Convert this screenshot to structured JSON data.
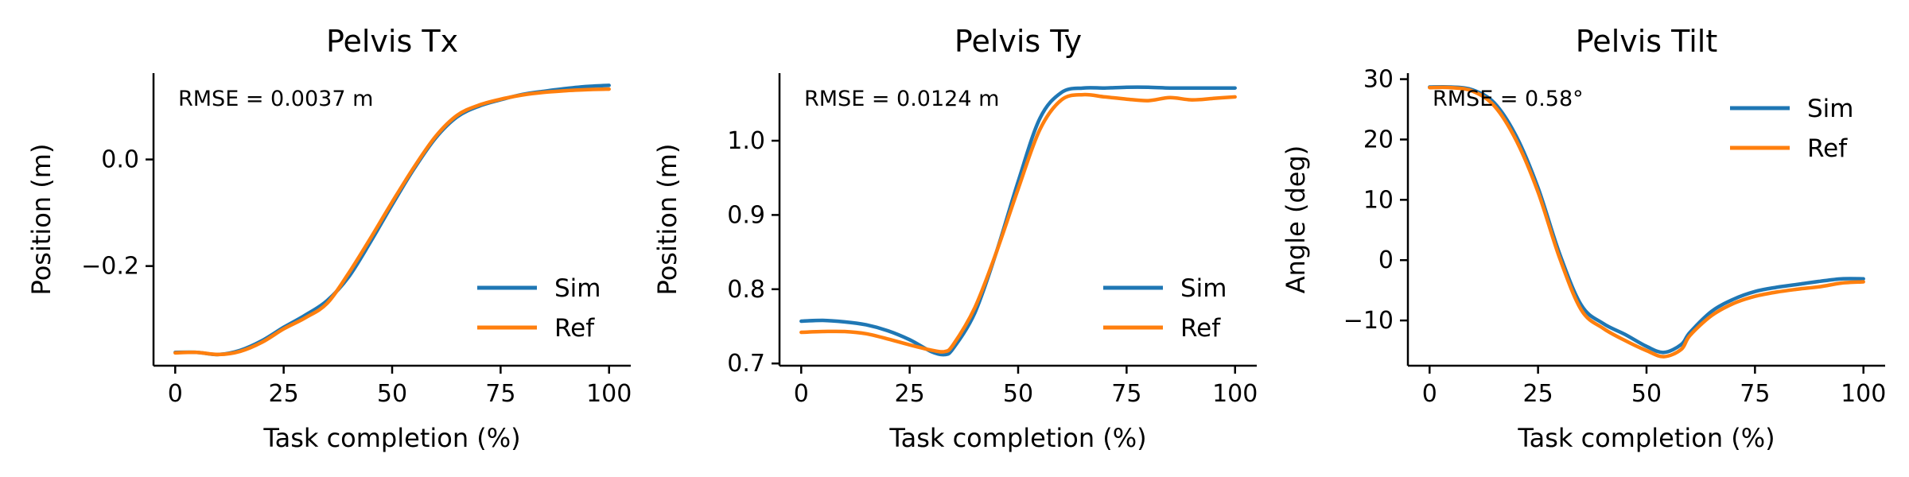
{
  "colors": {
    "sim": "#1f77b4",
    "ref": "#ff7f0e",
    "axis": "#000000"
  },
  "chart_data": [
    {
      "type": "line",
      "title": "Pelvis Tx",
      "xlabel": "Task completion (%)",
      "ylabel": "Position (m)",
      "annotation": "RMSE = 0.0037 m",
      "xlim": [
        -5,
        105
      ],
      "ylim": [
        -0.387,
        0.162
      ],
      "xticks": [
        0,
        25,
        50,
        75,
        100
      ],
      "xtick_labels": [
        "0",
        "25",
        "50",
        "75",
        "100"
      ],
      "yticks": [
        0.0,
        -0.2
      ],
      "ytick_labels": [
        "0.0",
        "−0.2"
      ],
      "legend_position": "lower right",
      "legend": [
        "Sim",
        "Ref"
      ],
      "x": [
        0,
        5,
        10,
        15,
        20,
        25,
        30,
        35,
        40,
        45,
        50,
        55,
        60,
        65,
        70,
        75,
        80,
        85,
        90,
        95,
        100
      ],
      "series": [
        {
          "name": "Sim",
          "color": "sim",
          "values": [
            -0.362,
            -0.362,
            -0.366,
            -0.358,
            -0.34,
            -0.315,
            -0.292,
            -0.265,
            -0.22,
            -0.155,
            -0.085,
            -0.018,
            0.04,
            0.08,
            0.1,
            0.112,
            0.122,
            0.128,
            0.133,
            0.137,
            0.139
          ]
        },
        {
          "name": "Ref",
          "color": "ref",
          "values": [
            -0.363,
            -0.362,
            -0.366,
            -0.36,
            -0.343,
            -0.318,
            -0.297,
            -0.27,
            -0.213,
            -0.148,
            -0.08,
            -0.015,
            0.043,
            0.083,
            0.102,
            0.113,
            0.121,
            0.126,
            0.129,
            0.131,
            0.132
          ]
        }
      ]
    },
    {
      "type": "line",
      "title": "Pelvis Ty",
      "xlabel": "Task completion (%)",
      "ylabel": "Position (m)",
      "annotation": "RMSE = 0.0124 m",
      "xlim": [
        -5,
        105
      ],
      "ylim": [
        0.697,
        1.091
      ],
      "xticks": [
        0,
        25,
        50,
        75,
        100
      ],
      "xtick_labels": [
        "0",
        "25",
        "50",
        "75",
        "100"
      ],
      "yticks": [
        0.7,
        0.8,
        0.9,
        1.0
      ],
      "ytick_labels": [
        "0.7",
        "0.8",
        "0.9",
        "1.0"
      ],
      "legend_position": "lower right",
      "legend": [
        "Sim",
        "Ref"
      ],
      "x": [
        0,
        5,
        10,
        15,
        20,
        25,
        30,
        33,
        35,
        40,
        45,
        50,
        55,
        60,
        65,
        70,
        75,
        80,
        85,
        90,
        95,
        100
      ],
      "series": [
        {
          "name": "Sim",
          "color": "sim",
          "values": [
            0.757,
            0.758,
            0.756,
            0.752,
            0.744,
            0.732,
            0.716,
            0.712,
            0.72,
            0.768,
            0.85,
            0.945,
            1.03,
            1.065,
            1.071,
            1.071,
            1.072,
            1.072,
            1.071,
            1.071,
            1.071,
            1.071
          ]
        },
        {
          "name": "Ref",
          "color": "ref",
          "values": [
            0.742,
            0.743,
            0.743,
            0.74,
            0.733,
            0.725,
            0.718,
            0.716,
            0.725,
            0.775,
            0.85,
            0.935,
            1.015,
            1.055,
            1.062,
            1.059,
            1.056,
            1.054,
            1.058,
            1.055,
            1.057,
            1.059
          ]
        }
      ]
    },
    {
      "type": "line",
      "title": "Pelvis Tilt",
      "xlabel": "Task completion (%)",
      "ylabel": "Angle (deg)",
      "annotation": "RMSE = 0.58°",
      "xlim": [
        -5,
        105
      ],
      "ylim": [
        -17.5,
        31
      ],
      "xticks": [
        0,
        25,
        50,
        75,
        100
      ],
      "xtick_labels": [
        "0",
        "25",
        "50",
        "75",
        "100"
      ],
      "yticks": [
        -10,
        0,
        10,
        20,
        30
      ],
      "ytick_labels": [
        "−10",
        "0",
        "10",
        "20",
        "30"
      ],
      "legend_position": "upper right",
      "legend": [
        "Sim",
        "Ref"
      ],
      "x": [
        0,
        5,
        10,
        15,
        20,
        25,
        30,
        35,
        40,
        45,
        50,
        54,
        58,
        60,
        65,
        70,
        75,
        80,
        85,
        90,
        95,
        100
      ],
      "series": [
        {
          "name": "Sim",
          "color": "sim",
          "values": [
            28.7,
            28.7,
            28.2,
            26.0,
            20.5,
            12.0,
            1.0,
            -7.5,
            -10.5,
            -12.3,
            -14.3,
            -15.3,
            -14.0,
            -12.0,
            -8.5,
            -6.5,
            -5.2,
            -4.5,
            -4.0,
            -3.5,
            -3.1,
            -3.1
          ]
        },
        {
          "name": "Ref",
          "color": "ref",
          "values": [
            28.6,
            28.6,
            28.0,
            25.5,
            19.8,
            11.3,
            0.3,
            -8.3,
            -11.3,
            -13.3,
            -15.0,
            -16.0,
            -14.8,
            -12.5,
            -9.2,
            -7.2,
            -6.0,
            -5.3,
            -4.8,
            -4.4,
            -3.8,
            -3.6
          ]
        }
      ]
    }
  ]
}
